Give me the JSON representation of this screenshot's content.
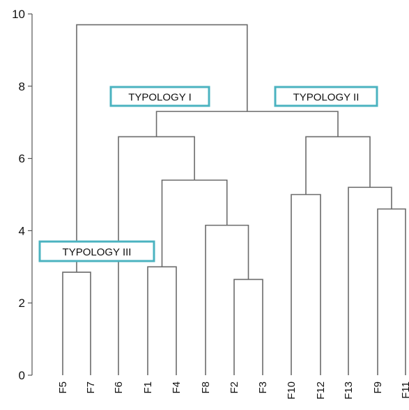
{
  "chart_data": {
    "type": "dendrogram",
    "ylim": [
      0,
      10
    ],
    "yticks": [
      "0",
      "2",
      "4",
      "6",
      "8",
      "10"
    ],
    "leaves": [
      "F5",
      "F7",
      "F6",
      "F1",
      "F4",
      "F8",
      "F2",
      "F3",
      "F10",
      "F12",
      "F13",
      "F9",
      "F11"
    ],
    "merges": [
      {
        "left": "F2",
        "right": "F3",
        "height": 2.65
      },
      {
        "left": "F5",
        "right": "F7",
        "height": 2.85
      },
      {
        "left": "F1",
        "right": "F4",
        "height": 3.0
      },
      {
        "left": "F8",
        "right": "F2+F3",
        "height": 4.15
      },
      {
        "left": "F9",
        "right": "F11",
        "height": 4.6
      },
      {
        "left": "F10",
        "right": "F12",
        "height": 5.0
      },
      {
        "left": "F13",
        "right": "F9+F11",
        "height": 5.2
      },
      {
        "left": "F1+F4",
        "right": "F8+F2+F3",
        "height": 5.4
      },
      {
        "left": "F6",
        "right": "F1+F4+F8+F2+F3",
        "height": 6.6
      },
      {
        "left": "F10+F12",
        "right": "F13+F9+F11",
        "height": 6.6
      },
      {
        "left": "Typology I",
        "right": "Typology II",
        "height": 7.3
      },
      {
        "left": "F5+F7",
        "right": "Typology I+II",
        "height": 9.7
      }
    ],
    "annotations": [
      {
        "text": "TYPOLOGY I"
      },
      {
        "text": "TYPOLOGY II"
      },
      {
        "text": "TYPOLOGY III"
      }
    ],
    "annotation_color": "#4bb3c0",
    "link_color": "#6b6b6b"
  }
}
